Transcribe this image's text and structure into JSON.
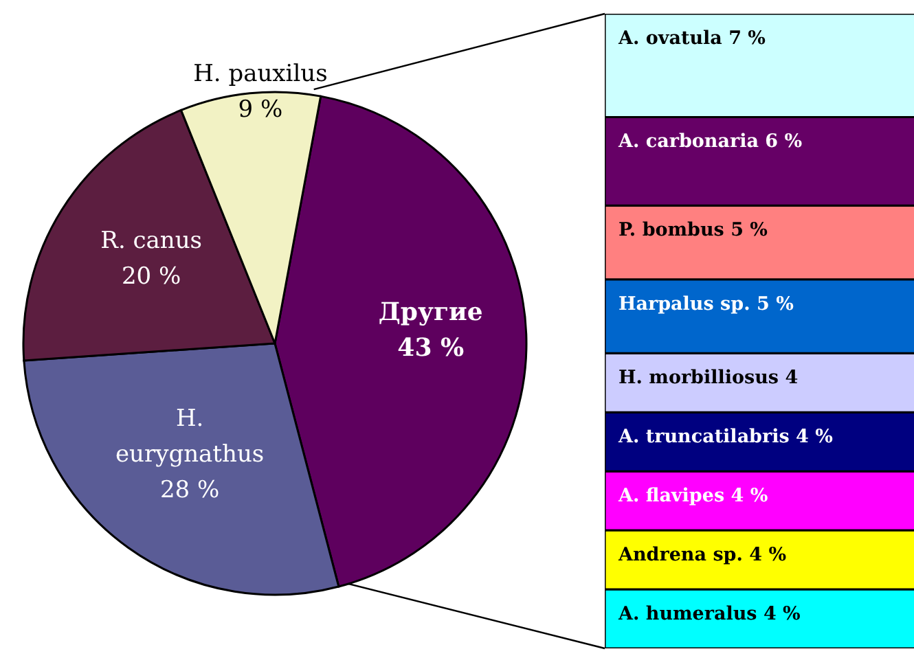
{
  "chart_data": [
    {
      "type": "pie",
      "categories": [
        "Другие",
        "H. eurygnathus",
        "R. canus",
        "H. pauxilus"
      ],
      "values": [
        43,
        28,
        20,
        9
      ],
      "value_labels": [
        "43 %",
        "28 %",
        "20 %",
        "9 %"
      ],
      "colors": [
        "#5e005e",
        "#5a5c96",
        "#5c1e40",
        "#f2f2c4"
      ]
    },
    {
      "type": "bar",
      "stacked": true,
      "categories": [
        null
      ],
      "series": [
        {
          "name": "A. humeralus",
          "color": "#00ffff",
          "values": [
            4
          ],
          "value_labels": [
            "4 %"
          ]
        },
        {
          "name": "Andrena sp.",
          "color": "#ffff00",
          "values": [
            4
          ],
          "value_labels": [
            "4 %"
          ]
        },
        {
          "name": "A. flavipes",
          "color": "#ff00ff",
          "values": [
            4
          ],
          "value_labels": [
            "4 %"
          ]
        },
        {
          "name": "A. truncatilabris",
          "color": "#000080",
          "values": [
            4
          ],
          "value_labels": [
            "4 %"
          ]
        },
        {
          "name": "H. morbilliosus",
          "color": "#ccccff",
          "values": [
            4
          ],
          "value_labels": [
            "4"
          ]
        },
        {
          "name": "Harpalus sp.",
          "color": "#0066cc",
          "values": [
            5
          ],
          "value_labels": [
            "5 %"
          ]
        },
        {
          "name": "P. bombus",
          "color": "#ff8080",
          "values": [
            5
          ],
          "value_labels": [
            "5 %"
          ]
        },
        {
          "name": "A. carbonaria",
          "color": "#660066",
          "values": [
            6
          ],
          "value_labels": [
            "6 %"
          ]
        },
        {
          "name": "A. ovatula",
          "color": "#ccffff",
          "values": [
            7
          ],
          "value_labels": [
            "7 %"
          ]
        }
      ]
    }
  ]
}
